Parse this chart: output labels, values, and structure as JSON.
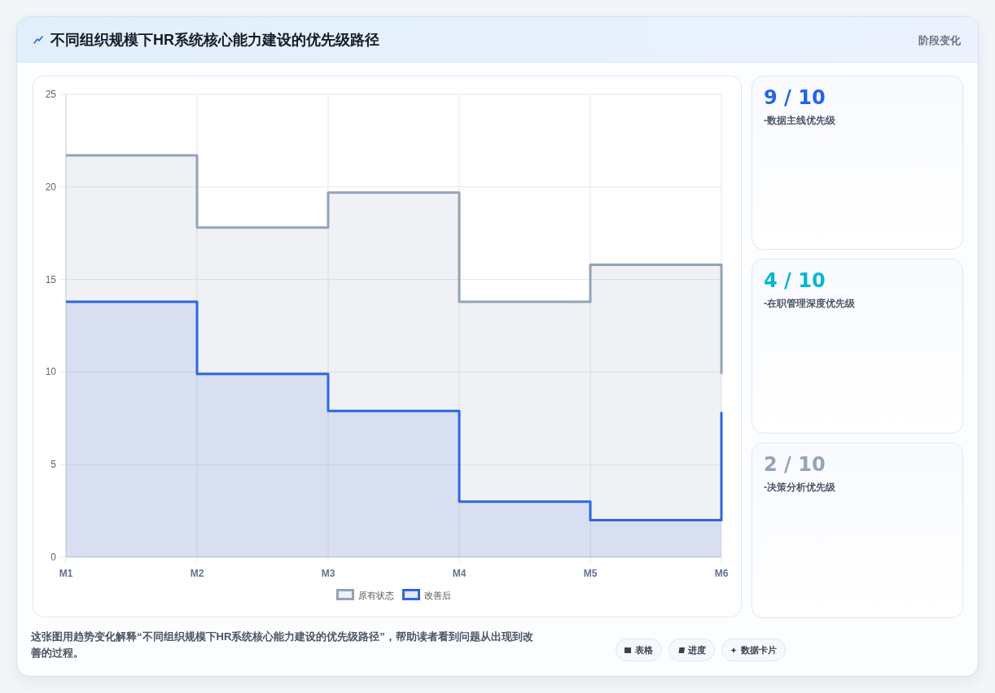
{
  "chart_data": [
    {
      "type": "step",
      "title": "不同组织规模下HR系统核心能力建设的优先级路径",
      "categories": [
        "M1",
        "M2",
        "M3",
        "M4",
        "M5",
        "M6"
      ],
      "series": [
        {
          "name": "原有状态",
          "type": "area",
          "color": "#94a3b8",
          "values": [
            21.7,
            17.8,
            19.7,
            13.8,
            15.8,
            9.9
          ]
        },
        {
          "name": "改善后",
          "type": "area",
          "color": "#2f66de",
          "values": [
            13.8,
            9.9,
            7.9,
            3.0,
            2.0,
            7.8
          ]
        }
      ],
      "ylim": [
        0,
        25
      ],
      "yticks": [
        0,
        5,
        10,
        15,
        20,
        25
      ],
      "grid": true,
      "legend": "bottom",
      "annotations": [
        "这张图用趋势变化解释“不同组织规模下HR系统核心能力建设的优先级路径”，帮助读者看到问题从出现到改善的过程。",
        "表格",
        "进度",
        "数据卡片"
      ]
    },
    {
      "type": "other",
      "title": "阶段变化",
      "annotations": [
        "9 / 10",
        "-数据主线优先级",
        "4 / 10",
        "-在职管理深度优先级",
        "2 / 10",
        "-决策分析优先级"
      ]
    }
  ]
}
